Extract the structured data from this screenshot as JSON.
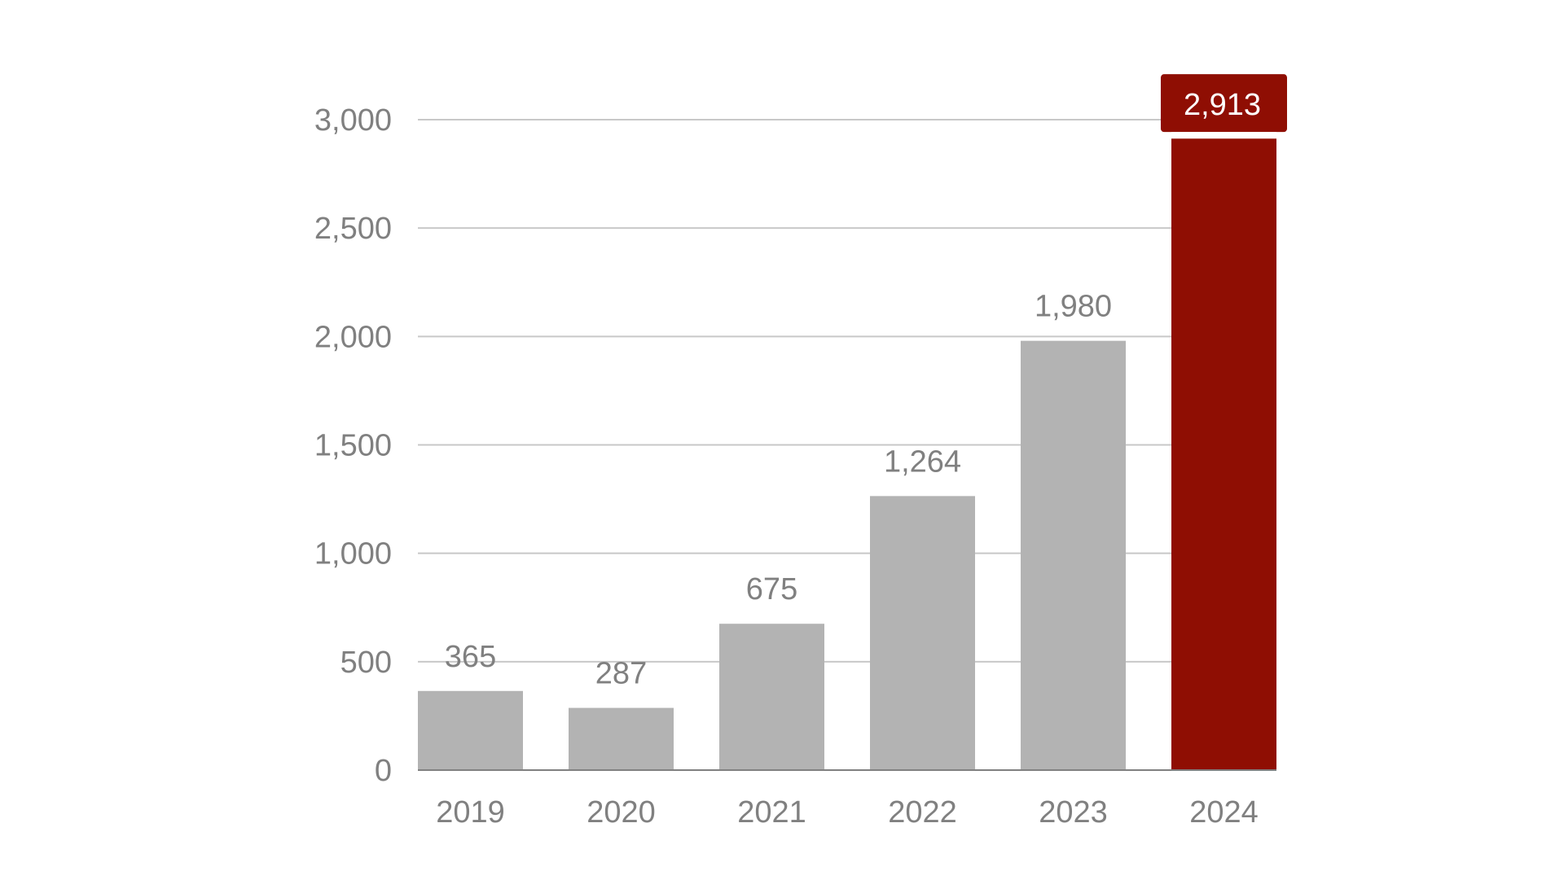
{
  "chart_data": {
    "type": "bar",
    "title": "",
    "xlabel": "",
    "ylabel": "",
    "categories": [
      "2019",
      "2020",
      "2021",
      "2022",
      "2023",
      "2024"
    ],
    "values": [
      365,
      287,
      675,
      1264,
      1980,
      2913
    ],
    "data_labels": [
      "365",
      "287",
      "675",
      "1,264",
      "1,980",
      "2,913"
    ],
    "ylim": [
      0,
      3000
    ],
    "yticks": [
      0,
      500,
      1000,
      1500,
      2000,
      2500,
      3000
    ],
    "ytick_labels": [
      "0",
      "500",
      "1,000",
      "1,500",
      "2,000",
      "2,500",
      "3,000"
    ],
    "grid": true,
    "legend": "none",
    "highlight_index": 5,
    "colors": {
      "bar": "#b3b3b3",
      "highlight": "#8f0e03",
      "grid": "#c8c8c8",
      "axis": "#808080",
      "text": "#808080",
      "highlight_label_text": "#ffffff"
    }
  }
}
